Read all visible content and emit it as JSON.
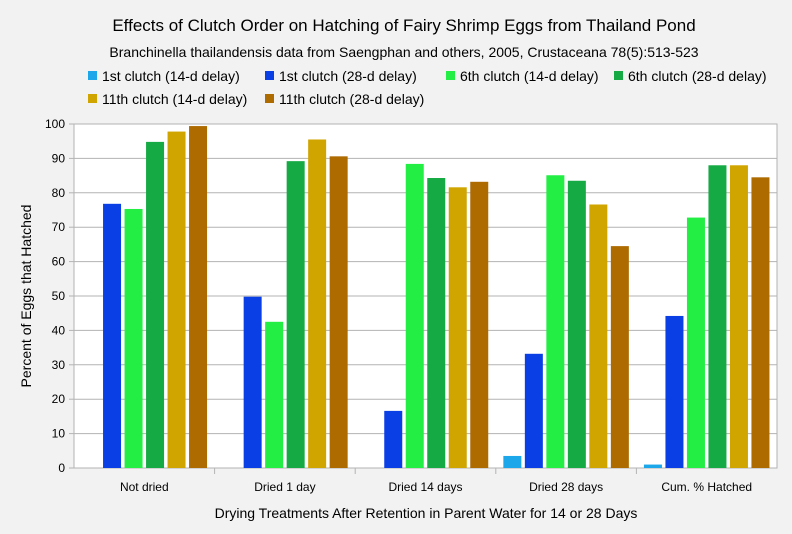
{
  "chart_data": {
    "type": "bar",
    "title": "Effects of Clutch Order on Hatching of Fairy Shrimp Eggs from Thailand Pond",
    "subtitle": "Branchinella thailandensis data from Saengphan and others, 2005, Crustaceana 78(5):513-523",
    "xlabel": "Drying Treatments After Retention in Parent Water for 14 or 28 Days",
    "ylabel": "Percent of Eggs that Hatched",
    "ylim": [
      0,
      100
    ],
    "yticks": [
      "0",
      "10",
      "20",
      "30",
      "40",
      "50",
      "60",
      "70",
      "80",
      "90",
      "100"
    ],
    "grid": true,
    "legend_position": "top",
    "categories": [
      "Not dried",
      "Dried 1 day",
      "Dried 14 days",
      "Dried 28 days",
      "Cum. % Hatched"
    ],
    "series": [
      {
        "name": "1st clutch (14-d delay)",
        "color": "#1ba7ea",
        "values": [
          0,
          0,
          0,
          3.5,
          1
        ]
      },
      {
        "name": "1st clutch (28-d delay)",
        "color": "#0a3fe6",
        "values": [
          76.8,
          49.8,
          16.6,
          33.2,
          44.2
        ]
      },
      {
        "name": "6th clutch (14-d delay)",
        "color": "#22ee44",
        "values": [
          75.3,
          42.5,
          88.4,
          85.1,
          72.8
        ]
      },
      {
        "name": "6th clutch (28-d delay)",
        "color": "#16aa44",
        "values": [
          94.8,
          89.2,
          84.3,
          83.5,
          88
        ]
      },
      {
        "name": "11th clutch (14-d delay)",
        "color": "#d1a500",
        "values": [
          97.8,
          95.5,
          81.6,
          76.6,
          88
        ]
      },
      {
        "name": "11th clutch (28-d delay)",
        "color": "#ad6b00",
        "values": [
          99.4,
          90.6,
          83.2,
          64.5,
          84.5
        ]
      }
    ]
  }
}
